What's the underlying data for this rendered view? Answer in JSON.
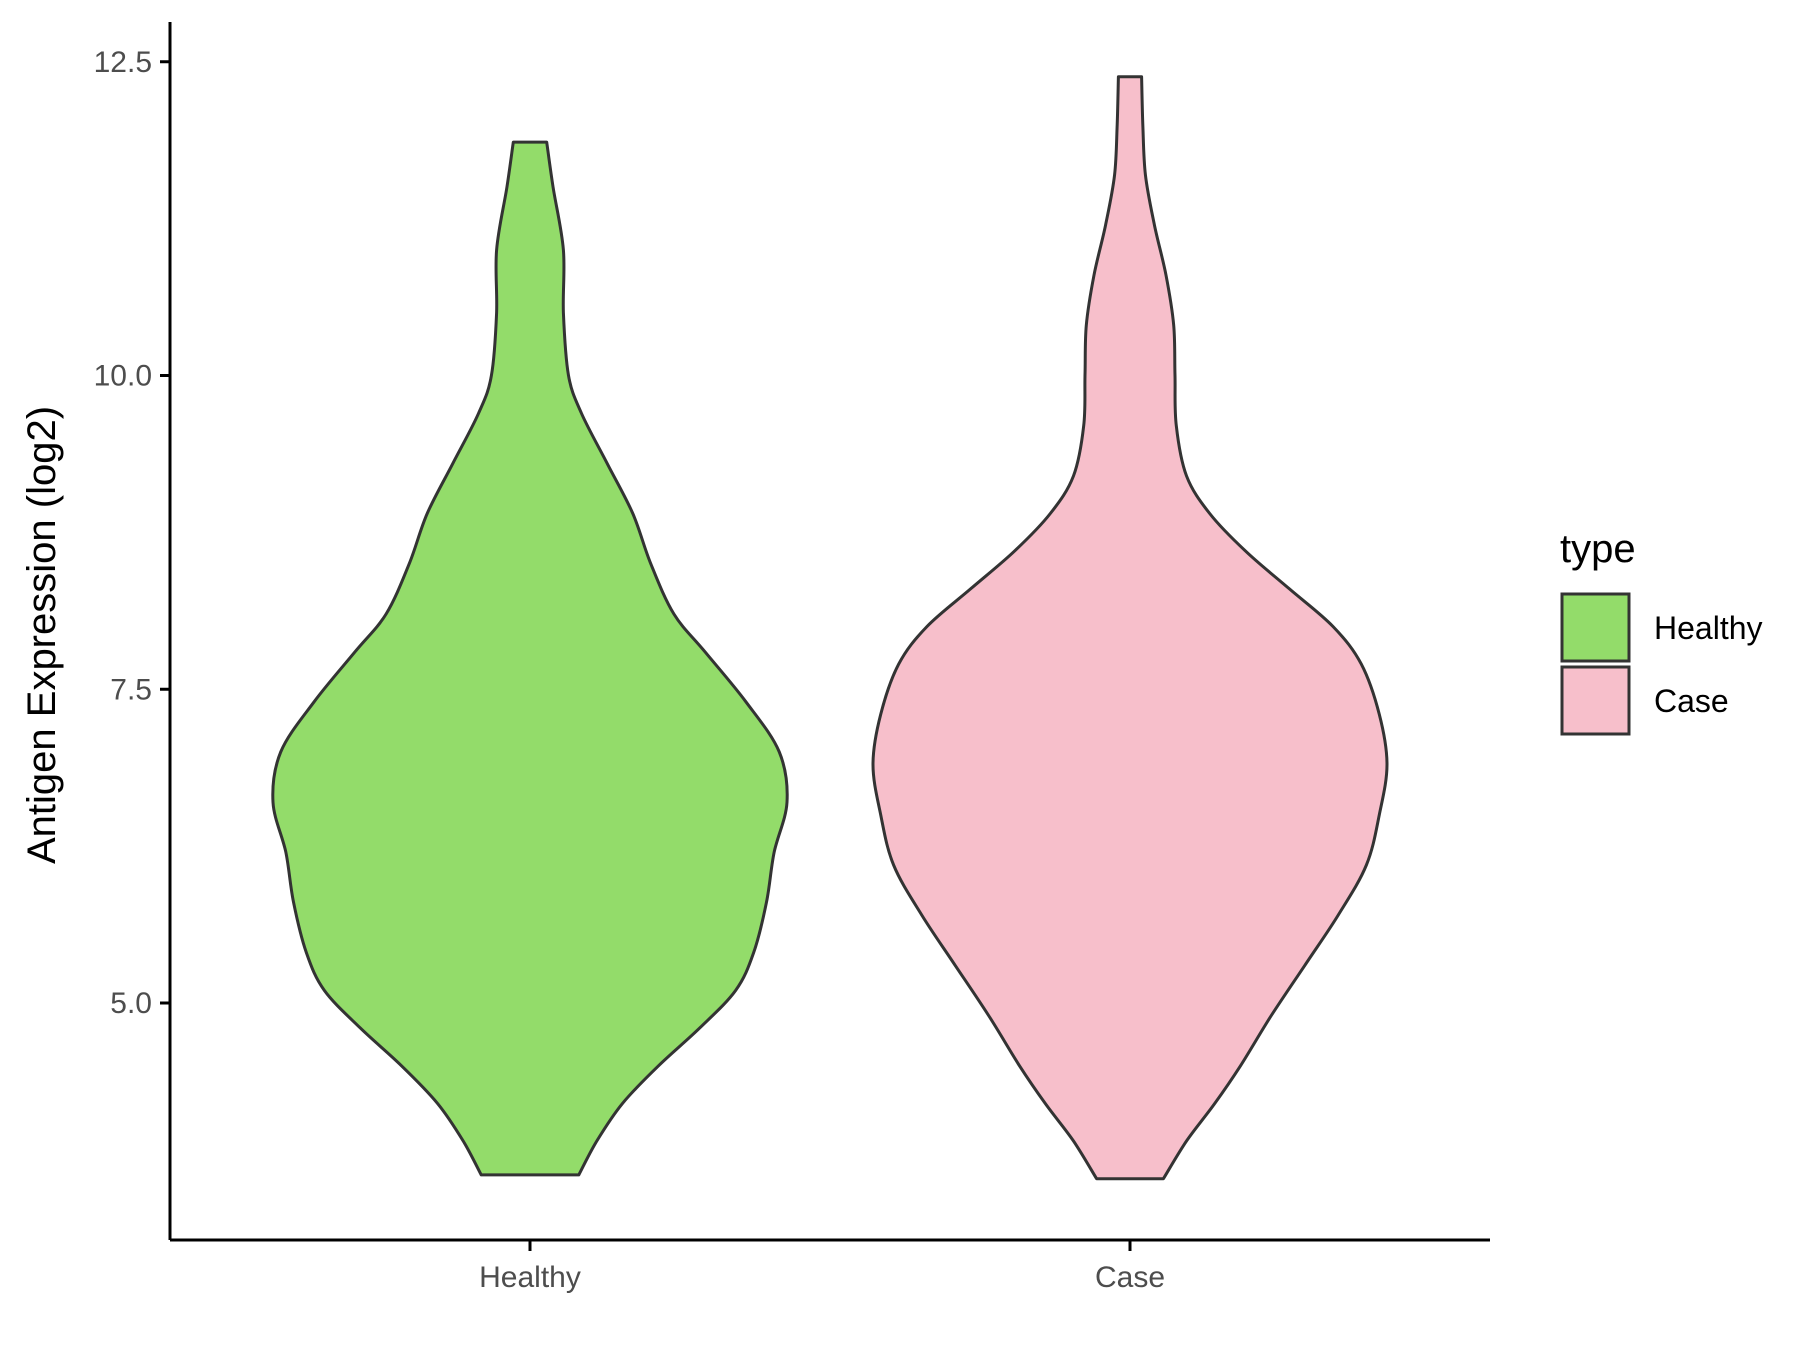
{
  "chart_data": {
    "type": "violin",
    "title": "",
    "xlabel": "",
    "ylabel": "Antigen Expression (log2)",
    "ylim": [
      3.1,
      12.8
    ],
    "yticks": [
      5.0,
      7.5,
      10.0,
      12.5
    ],
    "ytick_labels": [
      "5.0",
      "7.5",
      "10.0",
      "12.5"
    ],
    "categories": [
      "Healthy",
      "Case"
    ],
    "legend": {
      "title": "type",
      "placement": "right",
      "entries": [
        {
          "label": "Healthy",
          "color": "#93dc6a"
        },
        {
          "label": "Case",
          "color": "#f7bfcb"
        }
      ]
    },
    "outline_color": "#333333",
    "series": [
      {
        "name": "Healthy",
        "color": "#93dc6a",
        "min": 3.63,
        "max": 11.86,
        "density_profile": [
          [
            3.63,
            0.19
          ],
          [
            3.9,
            0.26
          ],
          [
            4.2,
            0.36
          ],
          [
            4.5,
            0.5
          ],
          [
            4.8,
            0.66
          ],
          [
            5.1,
            0.8
          ],
          [
            5.4,
            0.87
          ],
          [
            5.8,
            0.92
          ],
          [
            6.2,
            0.95
          ],
          [
            6.6,
            1.0
          ],
          [
            7.0,
            0.97
          ],
          [
            7.4,
            0.84
          ],
          [
            7.8,
            0.68
          ],
          [
            8.1,
            0.56
          ],
          [
            8.5,
            0.47
          ],
          [
            8.9,
            0.4
          ],
          [
            9.3,
            0.3
          ],
          [
            9.7,
            0.2
          ],
          [
            10.0,
            0.15
          ],
          [
            10.5,
            0.13
          ],
          [
            11.0,
            0.13
          ],
          [
            11.5,
            0.09
          ],
          [
            11.86,
            0.065
          ]
        ]
      },
      {
        "name": "Case",
        "color": "#f7bfcb",
        "min": 3.6,
        "max": 12.38,
        "density_profile": [
          [
            3.6,
            0.13
          ],
          [
            3.9,
            0.22
          ],
          [
            4.2,
            0.33
          ],
          [
            4.5,
            0.43
          ],
          [
            4.9,
            0.55
          ],
          [
            5.3,
            0.68
          ],
          [
            5.7,
            0.81
          ],
          [
            6.1,
            0.92
          ],
          [
            6.5,
            0.97
          ],
          [
            6.9,
            1.0
          ],
          [
            7.3,
            0.97
          ],
          [
            7.7,
            0.9
          ],
          [
            8.0,
            0.79
          ],
          [
            8.3,
            0.62
          ],
          [
            8.6,
            0.45
          ],
          [
            8.9,
            0.31
          ],
          [
            9.2,
            0.22
          ],
          [
            9.6,
            0.18
          ],
          [
            10.0,
            0.175
          ],
          [
            10.4,
            0.17
          ],
          [
            10.8,
            0.14
          ],
          [
            11.2,
            0.095
          ],
          [
            11.6,
            0.06
          ],
          [
            12.0,
            0.05
          ],
          [
            12.38,
            0.045
          ]
        ]
      }
    ]
  }
}
